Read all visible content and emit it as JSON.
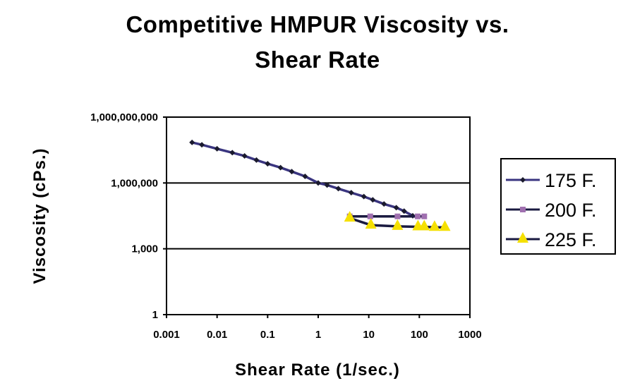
{
  "chart_data": {
    "type": "line",
    "title": "Competitive HMPUR Viscosity vs. Shear Rate",
    "title_lines": [
      "Competitive HMPUR Viscosity vs.",
      "Shear Rate"
    ],
    "xlabel": "Shear Rate (1/sec.)",
    "ylabel": "Viscosity (cPs.)",
    "x_scale": "log",
    "y_scale": "log",
    "xlim": [
      0.001,
      1000
    ],
    "ylim": [
      1,
      1000000000
    ],
    "x_ticks": [
      "0.001",
      "0.01",
      "0.1",
      "1",
      "10",
      "100",
      "1000"
    ],
    "x_tick_values": [
      0.001,
      0.01,
      0.1,
      1,
      10,
      100,
      1000
    ],
    "y_ticks": [
      "1",
      "1,000",
      "1,000,000",
      "1,000,000,000"
    ],
    "y_tick_values": [
      1,
      1000,
      1000000,
      1000000000
    ],
    "grid": "horizontal major",
    "legend": "right",
    "series": [
      {
        "name": "175 F.",
        "color": "#3a3580",
        "marker": "diamond",
        "marker_color": "#1a1a2e",
        "x": [
          0.0032,
          0.005,
          0.01,
          0.02,
          0.035,
          0.06,
          0.1,
          0.18,
          0.3,
          0.55,
          1.0,
          1.5,
          2.5,
          4.5,
          8,
          12,
          20,
          35,
          50,
          74
        ],
        "y": [
          70000000,
          55000000,
          36000000,
          24000000,
          17000000,
          11000000,
          7500000,
          5000000,
          3300000,
          2000000,
          1000000,
          800000,
          550000,
          360000,
          240000,
          170000,
          110000,
          75000,
          52000,
          32000
        ]
      },
      {
        "name": "200 F.",
        "color": "#1a1a40",
        "marker": "square",
        "marker_color": "#a070b0",
        "x": [
          4.2,
          10.7,
          37,
          93,
          125
        ],
        "y": [
          30000,
          30000,
          30000,
          30000,
          30000
        ]
      },
      {
        "name": "225 F.",
        "color": "#1a1a40",
        "marker": "triangle",
        "marker_color": "#f5e000",
        "x": [
          4.2,
          11,
          37,
          94,
          125,
          200,
          320
        ],
        "y": [
          25000,
          12000,
          10500,
          10000,
          10000,
          9500,
          9500
        ]
      }
    ]
  }
}
